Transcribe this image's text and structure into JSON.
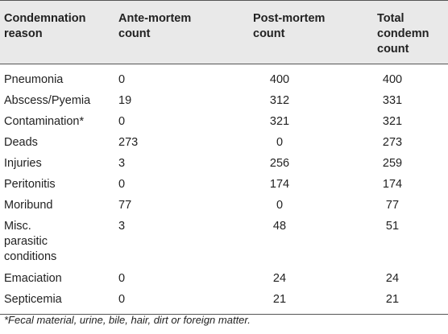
{
  "table": {
    "headers": {
      "reason": [
        "Condemnation",
        "reason"
      ],
      "ante": [
        "Ante-mortem",
        "count"
      ],
      "post": [
        "Post-mortem",
        "count"
      ],
      "total": [
        "Total condemn",
        "count"
      ]
    },
    "rows": [
      {
        "reason": [
          "Pneumonia"
        ],
        "ante": "0",
        "post": "400",
        "total": "400"
      },
      {
        "reason": [
          "Abscess/Pyemia"
        ],
        "ante": "19",
        "post": "312",
        "total": "331"
      },
      {
        "reason": [
          "Contamination*"
        ],
        "ante": "0",
        "post": "321",
        "total": "321"
      },
      {
        "reason": [
          "Deads"
        ],
        "ante": "273",
        "post": "0",
        "total": "273"
      },
      {
        "reason": [
          "Injuries"
        ],
        "ante": "3",
        "post": "256",
        "total": "259"
      },
      {
        "reason": [
          "Peritonitis"
        ],
        "ante": "0",
        "post": "174",
        "total": "174"
      },
      {
        "reason": [
          "Moribund"
        ],
        "ante": "77",
        "post": "0",
        "total": "77"
      },
      {
        "reason": [
          "Misc.",
          "parasitic",
          "conditions"
        ],
        "ante": "3",
        "post": "48",
        "total": "51"
      },
      {
        "reason": [
          "Emaciation"
        ],
        "ante": "0",
        "post": "24",
        "total": "24"
      },
      {
        "reason": [
          "Septicemia"
        ],
        "ante": "0",
        "post": "21",
        "total": "21"
      }
    ]
  },
  "footnote": "*Fecal material, urine, bile, hair, dirt or foreign matter."
}
